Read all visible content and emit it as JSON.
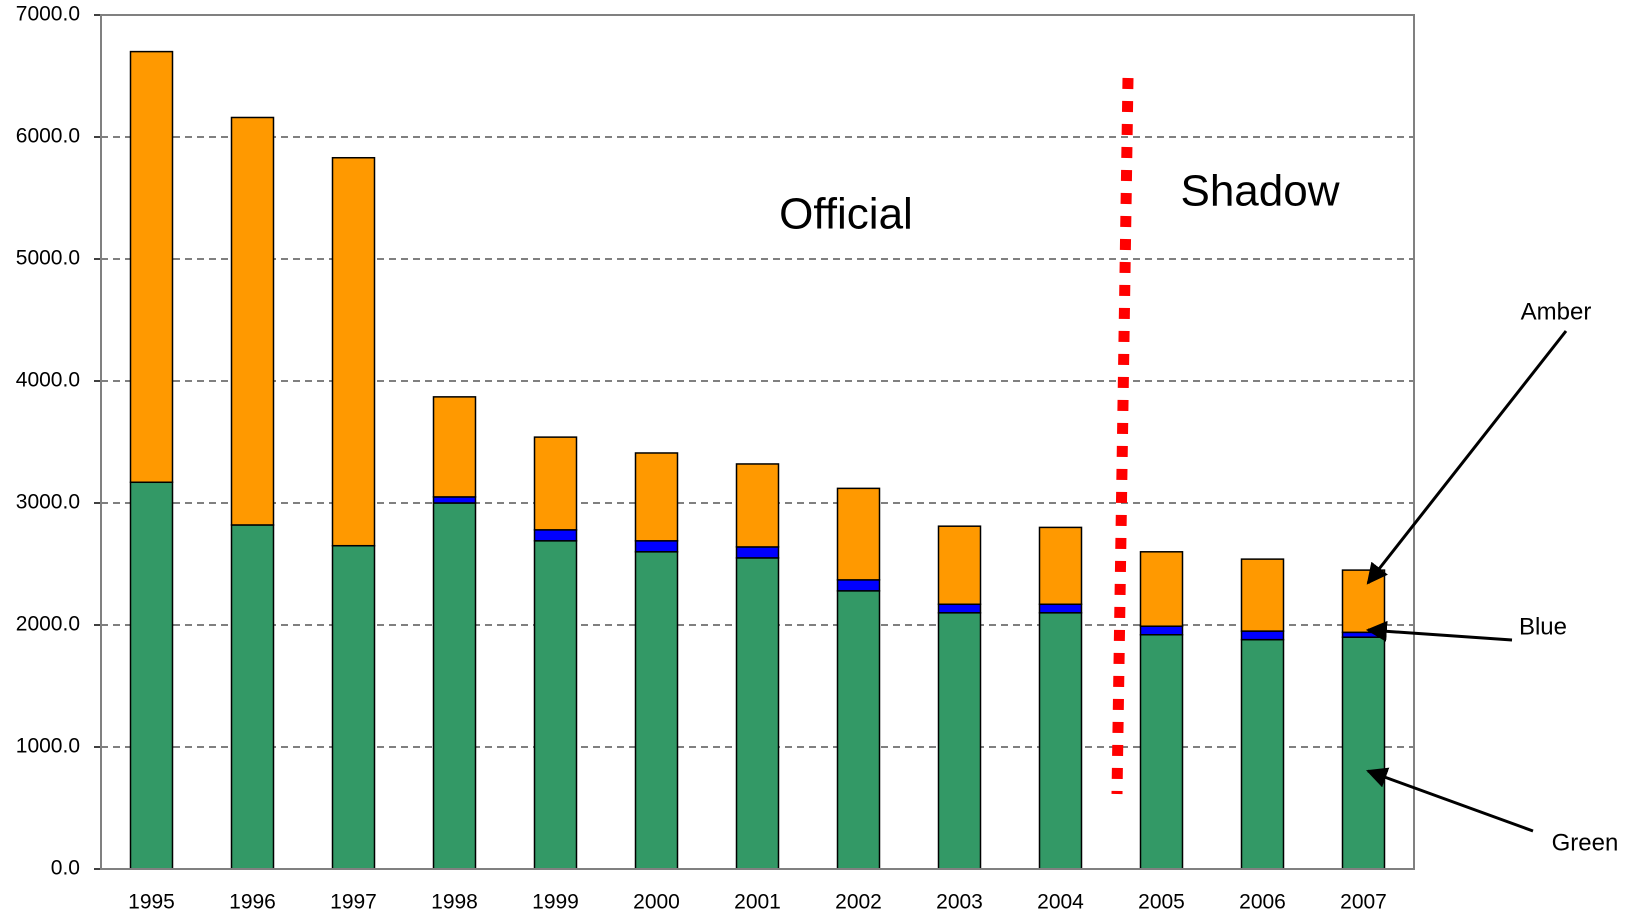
{
  "chart_data": {
    "type": "stacked_bar",
    "categories": [
      "1995",
      "1996",
      "1997",
      "1998",
      "1999",
      "2000",
      "2001",
      "2002",
      "2003",
      "2004",
      "2005",
      "2006",
      "2007"
    ],
    "series": [
      {
        "name": "Green",
        "color": "#339966",
        "values": [
          3170,
          2820,
          2650,
          3000,
          2690,
          2600,
          2550,
          2280,
          2100,
          2100,
          1920,
          1880,
          1900
        ]
      },
      {
        "name": "Blue",
        "color": "#0000ff",
        "values": [
          0,
          0,
          0,
          50,
          90,
          90,
          90,
          90,
          70,
          70,
          70,
          70,
          40
        ]
      },
      {
        "name": "Amber",
        "color": "#ff9900",
        "values": [
          3530,
          3340,
          3180,
          820,
          760,
          720,
          680,
          750,
          640,
          630,
          610,
          590,
          510
        ]
      }
    ],
    "ylim": [
      0,
      7000
    ],
    "yticks": [
      {
        "value": 0,
        "label": "0.0"
      },
      {
        "value": 1000,
        "label": "1000.0"
      },
      {
        "value": 2000,
        "label": "2000.0"
      },
      {
        "value": 3000,
        "label": "3000.0"
      },
      {
        "value": 4000,
        "label": "4000.0"
      },
      {
        "value": 5000,
        "label": "5000.0"
      },
      {
        "value": 6000,
        "label": "6000.0"
      },
      {
        "value": 7000,
        "label": "7000.0"
      }
    ],
    "grid": true,
    "annotations": [
      "Official",
      "Shadow"
    ]
  }
}
